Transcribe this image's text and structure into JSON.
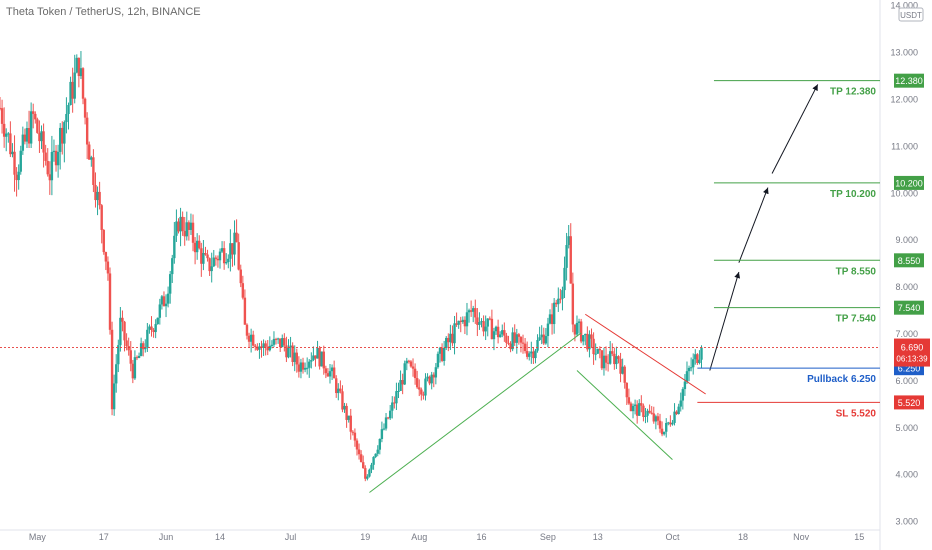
{
  "header": {
    "title": "Theta Token / TetherUS, 12h, BINANCE"
  },
  "currency_badge": "USDT",
  "chart_data": {
    "type": "candlestick",
    "symbol": "Theta Token / TetherUS, 12h, BINANCE",
    "y_ticks": [
      "14.000",
      "13.000",
      "12.000",
      "11.000",
      "10.000",
      "9.000",
      "8.000",
      "7.000",
      "6.000",
      "5.000",
      "4.000",
      "3.000"
    ],
    "x_ticks": [
      {
        "label": "May",
        "date": "2021-05-01"
      },
      {
        "label": "17",
        "date": "2021-05-17"
      },
      {
        "label": "Jun",
        "date": "2021-06-01"
      },
      {
        "label": "14",
        "date": "2021-06-14"
      },
      {
        "label": "Jul",
        "date": "2021-07-01"
      },
      {
        "label": "19",
        "date": "2021-07-19"
      },
      {
        "label": "Aug",
        "date": "2021-08-01"
      },
      {
        "label": "16",
        "date": "2021-08-16"
      },
      {
        "label": "Sep",
        "date": "2021-09-01"
      },
      {
        "label": "13",
        "date": "2021-09-13"
      },
      {
        "label": "Oct",
        "date": "2021-10-01"
      },
      {
        "label": "18",
        "date": "2021-10-18"
      },
      {
        "label": "Nov",
        "date": "2021-11-01"
      },
      {
        "label": "15",
        "date": "2021-11-15"
      }
    ],
    "ylim": [
      2.8,
      14.1
    ],
    "xlim": [
      "2021-04-22",
      "2021-11-20"
    ],
    "price_points": [
      {
        "date": "2021-04-22",
        "close": 11.8
      },
      {
        "date": "2021-04-26",
        "close": 10.5
      },
      {
        "date": "2021-04-30",
        "close": 11.6
      },
      {
        "date": "2021-05-04",
        "close": 10.4
      },
      {
        "date": "2021-05-08",
        "close": 11.7
      },
      {
        "date": "2021-05-11",
        "close": 12.8
      },
      {
        "date": "2021-05-13",
        "close": 11.2
      },
      {
        "date": "2021-05-16",
        "close": 9.6
      },
      {
        "date": "2021-05-18",
        "close": 8.3
      },
      {
        "date": "2021-05-19",
        "close": 5.5
      },
      {
        "date": "2021-05-21",
        "close": 7.2
      },
      {
        "date": "2021-05-24",
        "close": 6.2
      },
      {
        "date": "2021-05-28",
        "close": 7.0
      },
      {
        "date": "2021-06-01",
        "close": 7.8
      },
      {
        "date": "2021-06-04",
        "close": 9.4
      },
      {
        "date": "2021-06-07",
        "close": 9.1
      },
      {
        "date": "2021-06-11",
        "close": 8.4
      },
      {
        "date": "2021-06-14",
        "close": 8.7
      },
      {
        "date": "2021-06-18",
        "close": 8.9
      },
      {
        "date": "2021-06-20",
        "close": 7.1
      },
      {
        "date": "2021-06-24",
        "close": 6.7
      },
      {
        "date": "2021-06-29",
        "close": 6.8
      },
      {
        "date": "2021-07-03",
        "close": 6.3
      },
      {
        "date": "2021-07-07",
        "close": 6.6
      },
      {
        "date": "2021-07-11",
        "close": 6.1
      },
      {
        "date": "2021-07-15",
        "close": 5.1
      },
      {
        "date": "2021-07-19",
        "close": 3.9
      },
      {
        "date": "2021-07-21",
        "close": 4.4
      },
      {
        "date": "2021-07-25",
        "close": 5.3
      },
      {
        "date": "2021-07-29",
        "close": 6.3
      },
      {
        "date": "2021-08-02",
        "close": 5.8
      },
      {
        "date": "2021-08-06",
        "close": 6.5
      },
      {
        "date": "2021-08-10",
        "close": 7.1
      },
      {
        "date": "2021-08-14",
        "close": 7.5
      },
      {
        "date": "2021-08-16",
        "close": 7.2
      },
      {
        "date": "2021-08-20",
        "close": 7.0
      },
      {
        "date": "2021-08-24",
        "close": 6.8
      },
      {
        "date": "2021-08-28",
        "close": 6.6
      },
      {
        "date": "2021-09-01",
        "close": 7.1
      },
      {
        "date": "2021-09-04",
        "close": 7.9
      },
      {
        "date": "2021-09-06",
        "close": 8.9
      },
      {
        "date": "2021-09-07",
        "close": 7.2
      },
      {
        "date": "2021-09-10",
        "close": 6.9
      },
      {
        "date": "2021-09-14",
        "close": 6.4
      },
      {
        "date": "2021-09-18",
        "close": 6.5
      },
      {
        "date": "2021-09-21",
        "close": 5.4
      },
      {
        "date": "2021-09-25",
        "close": 5.3
      },
      {
        "date": "2021-09-29",
        "close": 4.9
      },
      {
        "date": "2021-10-02",
        "close": 5.4
      },
      {
        "date": "2021-10-05",
        "close": 6.2
      },
      {
        "date": "2021-10-08",
        "close": 6.69
      }
    ],
    "current_price": {
      "value": 6.69,
      "label": "6.690",
      "countdown": "06:13:39"
    },
    "trendlines": [
      {
        "color": "#4caf50",
        "from": {
          "date": "2021-07-20",
          "price": 3.6
        },
        "to": {
          "date": "2021-09-09",
          "price": 7.0
        }
      },
      {
        "color": "#4caf50",
        "from": {
          "date": "2021-09-08",
          "price": 6.2
        },
        "to": {
          "date": "2021-10-01",
          "price": 4.3
        }
      },
      {
        "color": "#e53935",
        "from": {
          "date": "2021-09-10",
          "price": 7.4
        },
        "to": {
          "date": "2021-10-09",
          "price": 5.7
        }
      }
    ],
    "projection_arrows": [
      {
        "from": {
          "date": "2021-10-10",
          "price": 6.2
        },
        "to": {
          "date": "2021-10-17",
          "price": 8.3
        }
      },
      {
        "from": {
          "date": "2021-10-17",
          "price": 8.5
        },
        "to": {
          "date": "2021-10-24",
          "price": 10.1
        }
      },
      {
        "from": {
          "date": "2021-10-25",
          "price": 10.4
        },
        "to": {
          "date": "2021-11-05",
          "price": 12.3
        }
      }
    ],
    "levels": [
      {
        "label": "TP 12.380",
        "price": 12.38,
        "badge": "12.380",
        "color": "#43a047"
      },
      {
        "label": "TP 10.200",
        "price": 10.2,
        "badge": "10.200",
        "color": "#43a047"
      },
      {
        "label": "TP 8.550",
        "price": 8.55,
        "badge": "8.550",
        "color": "#43a047"
      },
      {
        "label": "TP 7.540",
        "price": 7.54,
        "badge": "7.540",
        "color": "#43a047"
      },
      {
        "label": "Pullback 6.250",
        "price": 6.25,
        "badge": "6.250",
        "color": "#1e5ec8"
      },
      {
        "label": "SL 5.520",
        "price": 5.52,
        "badge": "5.520",
        "color": "#e53935"
      }
    ],
    "colors": {
      "up": "#26a69a",
      "down": "#ef5350",
      "price_line": "#e53935",
      "axis_text": "#787b86"
    }
  }
}
